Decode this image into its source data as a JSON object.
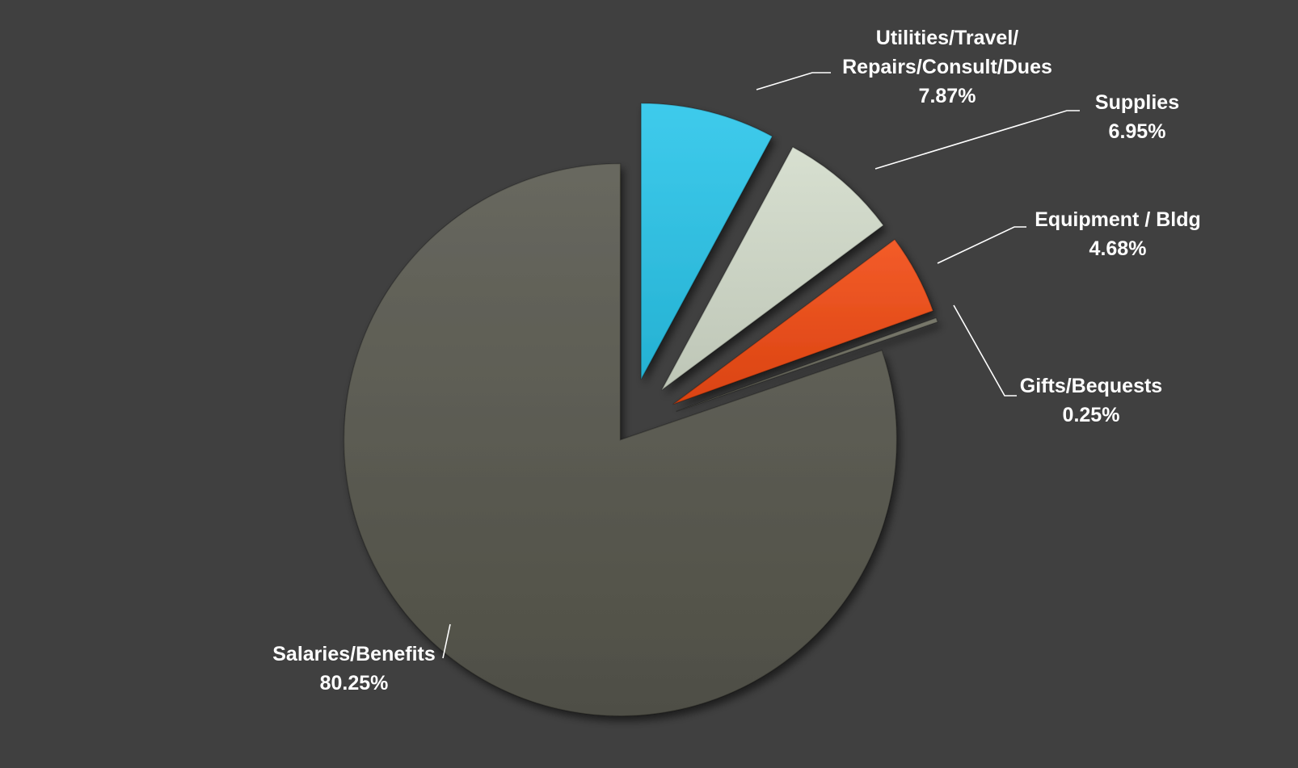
{
  "chart_data": {
    "type": "pie",
    "title": "",
    "exploded": true,
    "start_angle_deg": 0,
    "direction": "clockwise",
    "slices": [
      {
        "label_lines": [
          "Utilities/Travel/",
          "Repairs/Consult/Dues"
        ],
        "percent_label": "7.87%",
        "value": 7.87,
        "color": "#29c5ea"
      },
      {
        "label_lines": [
          "Supplies"
        ],
        "percent_label": "6.95%",
        "value": 6.95,
        "color": "#d3dccb"
      },
      {
        "label_lines": [
          "Equipment  / Bldg"
        ],
        "percent_label": "4.68%",
        "value": 4.68,
        "color": "#f24a12"
      },
      {
        "label_lines": [
          "Gifts/Bequests"
        ],
        "percent_label": "0.25%",
        "value": 0.25,
        "color": "#6a6a5c"
      },
      {
        "label_lines": [
          "Salaries/Benefits"
        ],
        "percent_label": "80.25%",
        "value": 80.25,
        "color": "#57574d"
      }
    ]
  }
}
